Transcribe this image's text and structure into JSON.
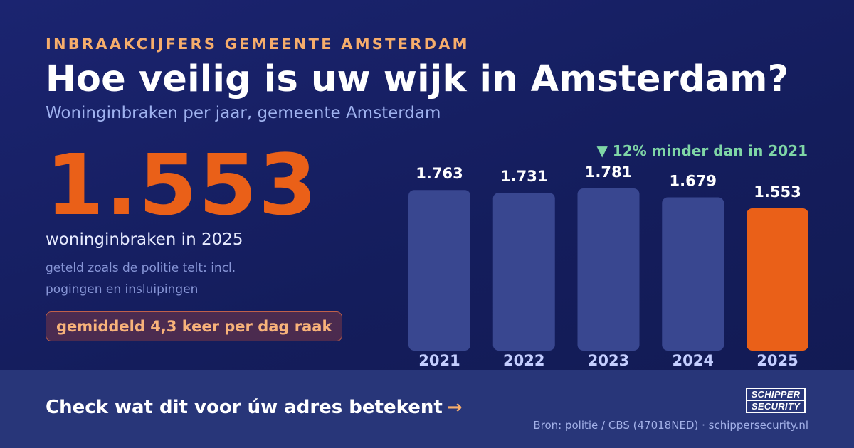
{
  "header": {
    "kicker": "INBRAAKCIJFERS GEMEENTE AMSTERDAM",
    "title": "Hoe veilig is uw wijk in Amsterdam?",
    "subtitle": "Woninginbraken per jaar, gemeente Amsterdam"
  },
  "highlight": {
    "value": "1.553",
    "caption": "woninginbraken in 2025",
    "note": "geteld zoals de politie telt: incl. pogingen en insluipingen",
    "pill": "gemiddeld 4,3 keer per dag raak"
  },
  "chart_data": {
    "type": "bar",
    "categories": [
      "2021",
      "2022",
      "2023",
      "2024",
      "2025"
    ],
    "values": [
      1763,
      1731,
      1781,
      1679,
      1553
    ],
    "value_labels": [
      "1.763",
      "1.731",
      "1.781",
      "1.679",
      "1.553"
    ],
    "highlight_category": "2025",
    "annotation": "▼ 12% minder dan in 2021",
    "colors": {
      "bar": "#394790",
      "highlight": "#ea6018",
      "annotation": "#7fd6a6"
    }
  },
  "footer": {
    "cta": "Check wat dit voor úw adres betekent",
    "cta_arrow": "→",
    "logo_line1": "SCHIPPER",
    "logo_line2": "SECURITY",
    "source": "Bron: politie / CBS (47018NED) · schippersecurity.nl"
  }
}
